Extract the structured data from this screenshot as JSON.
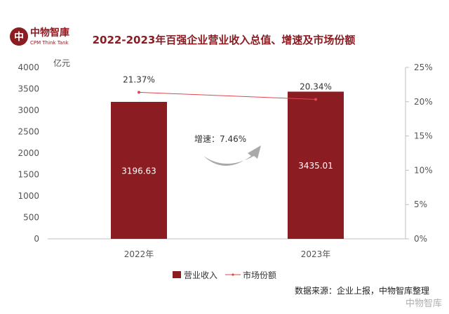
{
  "brand": {
    "name_cn": "中物智庫",
    "name_en": "CPM Think Tank",
    "logo_char": "中"
  },
  "colors": {
    "bar": "#8b1c22",
    "line": "#e0474c",
    "title": "#8b1c22",
    "axis_text": "#555555"
  },
  "chart_data": {
    "type": "bar",
    "title": "2022-2023年百强企业营业收入总值、增速及市场份额",
    "categories": [
      "2022年",
      "2023年"
    ],
    "series": [
      {
        "name": "营业收入",
        "type": "bar",
        "axis": "left",
        "values": [
          3196.63,
          3435.01
        ],
        "labels": [
          "3196.63",
          "3435.01"
        ]
      },
      {
        "name": "市场份额",
        "type": "line",
        "axis": "right",
        "values": [
          21.37,
          20.34
        ],
        "labels": [
          "21.37%",
          "20.34%"
        ]
      }
    ],
    "y_left": {
      "unit": "亿元",
      "min": 0,
      "max": 4000,
      "ticks": [
        "0",
        "500",
        "1000",
        "1500",
        "2000",
        "2500",
        "3000",
        "3500",
        "4000"
      ]
    },
    "y_right": {
      "min": 0,
      "max": 25,
      "ticks": [
        "0%",
        "5%",
        "10%",
        "15%",
        "20%",
        "25%"
      ]
    },
    "annotation": {
      "text": "增速：7.46%",
      "value": 7.46
    },
    "legend_position": "bottom-center",
    "grid": false
  },
  "source": "数据来源：企业上报，中物智库整理",
  "watermark": "中物智库"
}
